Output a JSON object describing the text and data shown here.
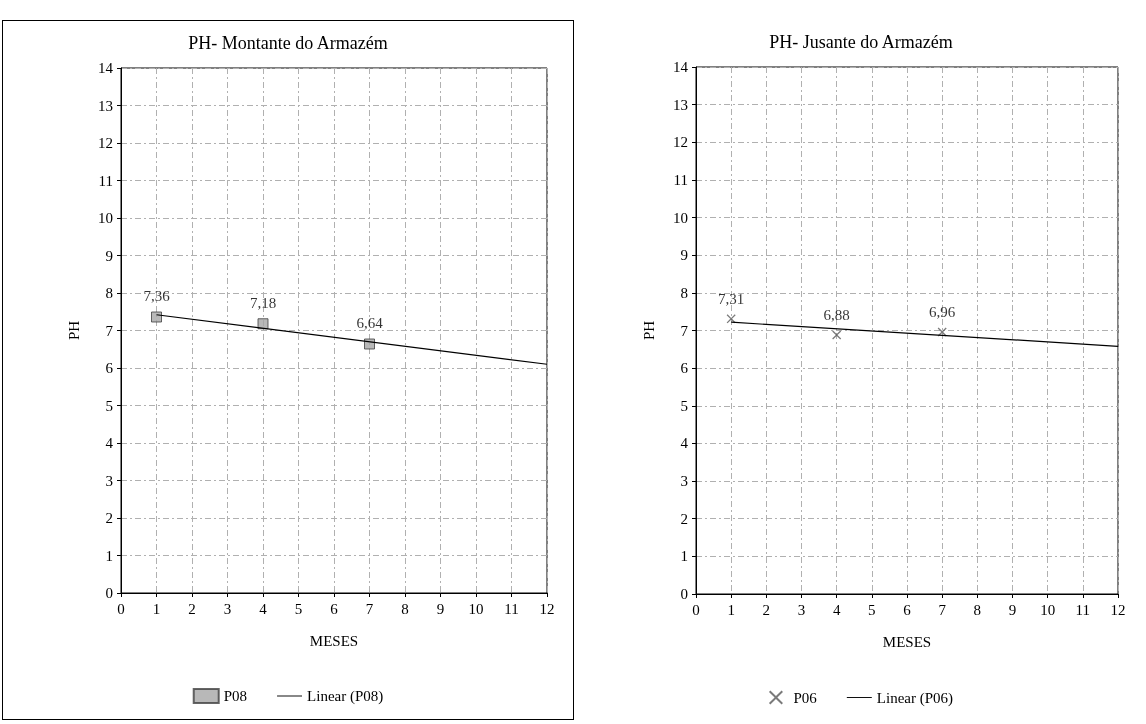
{
  "chart_data": [
    {
      "type": "scatter",
      "title": "PH- Montante do Armazém",
      "xlabel": "MESES",
      "ylabel": "PH",
      "xlim": [
        0,
        12
      ],
      "xticks": [
        0,
        1,
        2,
        3,
        4,
        5,
        6,
        7,
        8,
        9,
        10,
        11,
        12
      ],
      "ylim": [
        0,
        14
      ],
      "yticks": [
        0,
        1,
        2,
        3,
        4,
        5,
        6,
        7,
        8,
        9,
        10,
        11,
        12,
        13,
        14
      ],
      "grid": true,
      "legend": "bottom",
      "series": [
        {
          "name": "P08",
          "marker": "square",
          "color": "#a6a6a6",
          "x": [
            1,
            4,
            7
          ],
          "values": [
            7.36,
            7.18,
            6.64
          ],
          "value_labels": [
            "7,36",
            "7,18",
            "6,64"
          ]
        },
        {
          "name": "Linear (P08)",
          "type": "line",
          "marker": "none",
          "line_style": "solid",
          "color": "#000000",
          "x": [
            1,
            12
          ],
          "values": [
            7.42,
            6.1
          ]
        }
      ]
    },
    {
      "type": "scatter",
      "title": "PH- Jusante do Armazém",
      "xlabel": "MESES",
      "ylabel": "PH",
      "xlim": [
        0,
        12
      ],
      "xticks": [
        0,
        1,
        2,
        3,
        4,
        5,
        6,
        7,
        8,
        9,
        10,
        11,
        12
      ],
      "ylim": [
        0,
        14
      ],
      "yticks": [
        0,
        1,
        2,
        3,
        4,
        5,
        6,
        7,
        8,
        9,
        10,
        11,
        12,
        13,
        14
      ],
      "grid": true,
      "legend": "bottom",
      "series": [
        {
          "name": "P06",
          "marker": "cross",
          "color": "#595959",
          "x": [
            1,
            4,
            7
          ],
          "values": [
            7.31,
            6.88,
            6.96
          ],
          "value_labels": [
            "7,31",
            "6,88",
            "6,96"
          ]
        },
        {
          "name": "Linear (P06)",
          "type": "line",
          "marker": "none",
          "line_style": "solid",
          "color": "#000000",
          "x": [
            1,
            12
          ],
          "values": [
            7.22,
            6.58
          ]
        }
      ]
    }
  ]
}
